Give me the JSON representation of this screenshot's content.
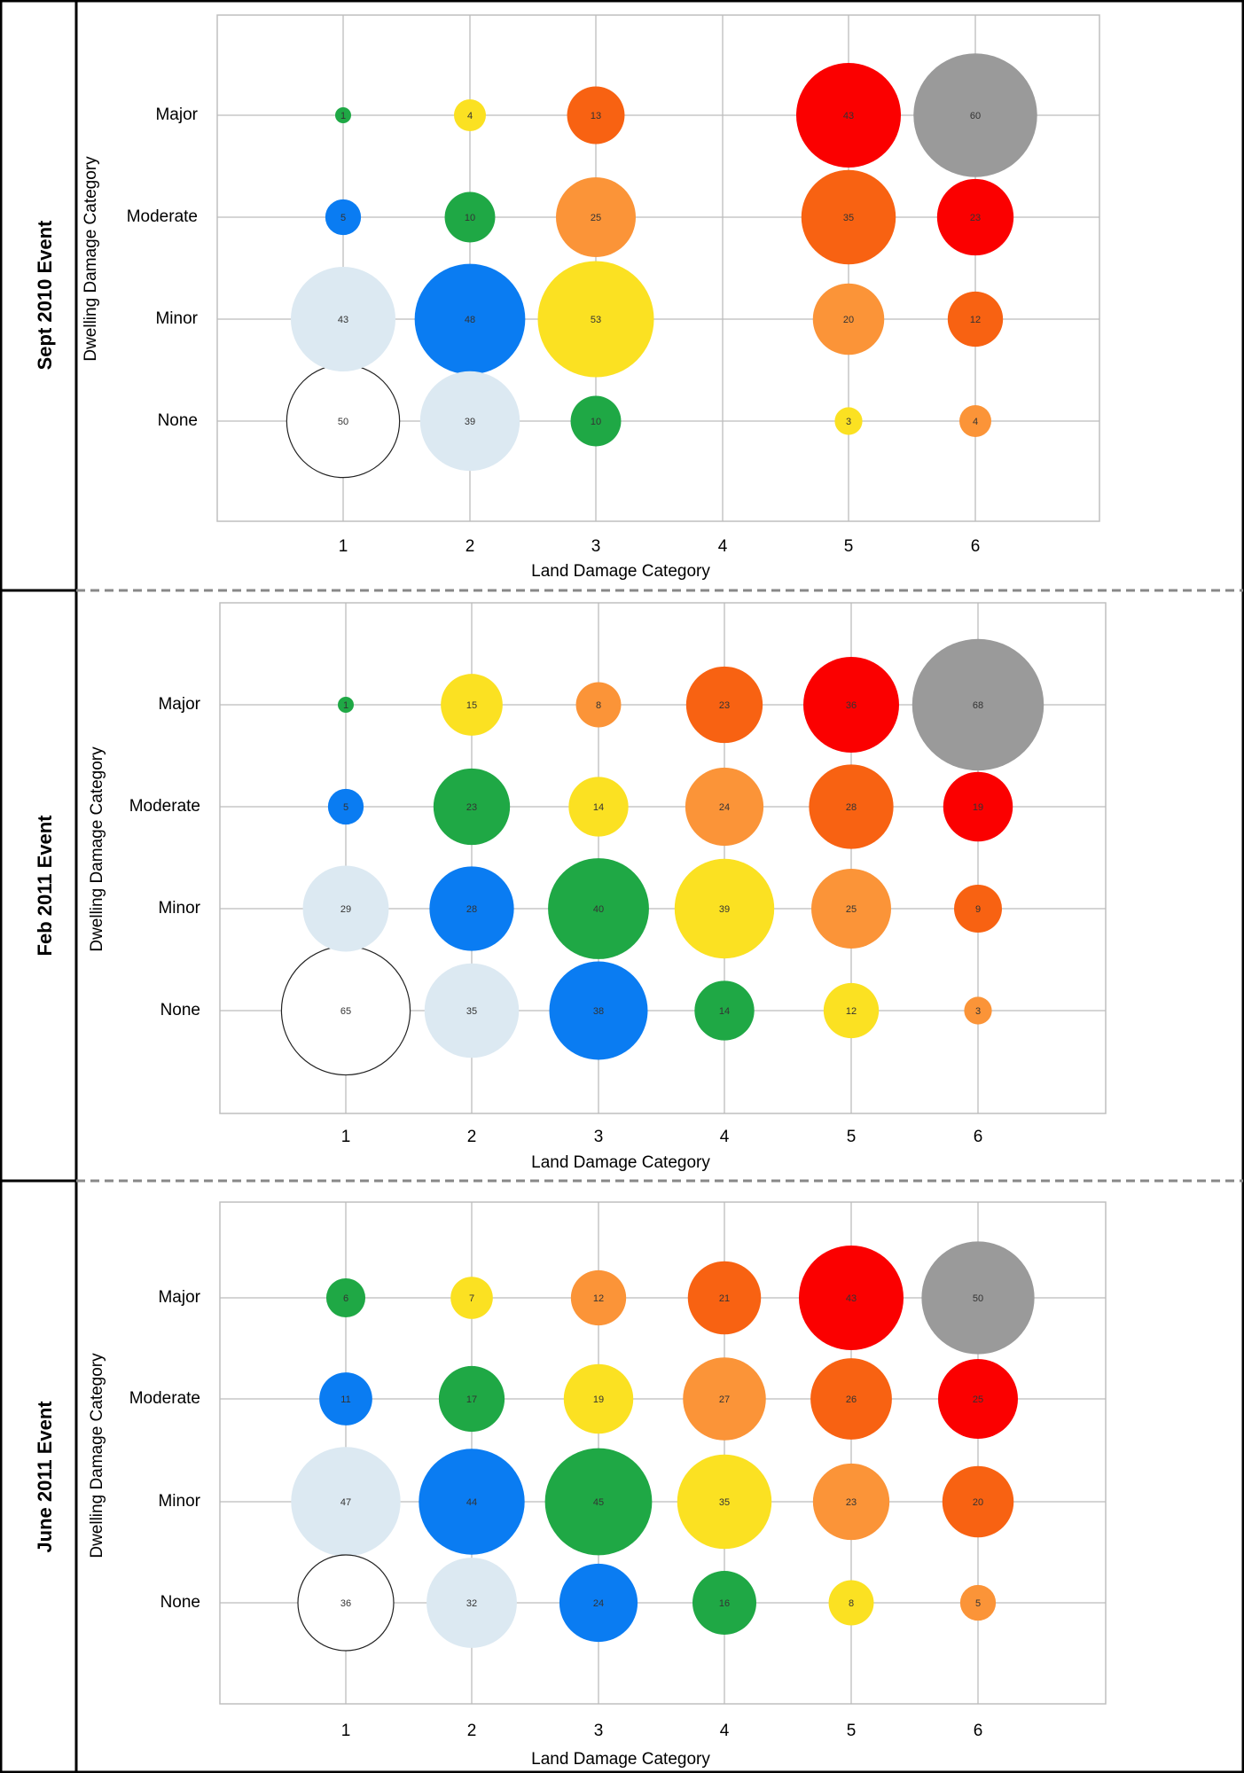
{
  "panels": [
    {
      "event_label": "Sept 2010 Event",
      "x_axis_label": "Land Damage Category",
      "y_axis_label": "Dwelling Damage Category"
    },
    {
      "event_label": "Feb 2011 Event",
      "x_axis_label": "Land Damage Category",
      "y_axis_label": "Dwelling Damage Category"
    },
    {
      "event_label": "June 2011 Event",
      "x_axis_label": "Land Damage Category",
      "y_axis_label": "Dwelling Damage Category"
    }
  ],
  "colors": {
    "white_outline": "#ffffff",
    "light_blue": "#dce9f2",
    "blue": "#0a7cf2",
    "green": "#1fa845",
    "yellow": "#fbe122",
    "light_orange": "#fb9438",
    "dark_orange": "#f86212",
    "red": "#fb0000",
    "gray": "#9a9a9a"
  },
  "chart_data": [
    {
      "type": "bubble",
      "title": "Sept 2010 Event",
      "xlabel": "Land Damage Category",
      "ylabel": "Dwelling Damage Category",
      "x_categories": [
        "1",
        "2",
        "3",
        "4",
        "5",
        "6"
      ],
      "y_categories": [
        "None",
        "Minor",
        "Moderate",
        "Major"
      ],
      "grid": true,
      "points": [
        {
          "x": 1,
          "y": "Major",
          "value": 1,
          "color": "green"
        },
        {
          "x": 2,
          "y": "Major",
          "value": 4,
          "color": "yellow"
        },
        {
          "x": 3,
          "y": "Major",
          "value": 13,
          "color": "dark_orange"
        },
        {
          "x": 5,
          "y": "Major",
          "value": 43,
          "color": "red"
        },
        {
          "x": 6,
          "y": "Major",
          "value": 60,
          "color": "gray"
        },
        {
          "x": 1,
          "y": "Moderate",
          "value": 5,
          "color": "blue"
        },
        {
          "x": 2,
          "y": "Moderate",
          "value": 10,
          "color": "green"
        },
        {
          "x": 3,
          "y": "Moderate",
          "value": 25,
          "color": "light_orange"
        },
        {
          "x": 5,
          "y": "Moderate",
          "value": 35,
          "color": "dark_orange"
        },
        {
          "x": 6,
          "y": "Moderate",
          "value": 23,
          "color": "red"
        },
        {
          "x": 1,
          "y": "Minor",
          "value": 43,
          "color": "light_blue"
        },
        {
          "x": 2,
          "y": "Minor",
          "value": 48,
          "color": "blue"
        },
        {
          "x": 3,
          "y": "Minor",
          "value": 53,
          "color": "yellow"
        },
        {
          "x": 5,
          "y": "Minor",
          "value": 20,
          "color": "light_orange"
        },
        {
          "x": 6,
          "y": "Minor",
          "value": 12,
          "color": "dark_orange"
        },
        {
          "x": 1,
          "y": "None",
          "value": 50,
          "color": "white_outline"
        },
        {
          "x": 2,
          "y": "None",
          "value": 39,
          "color": "light_blue"
        },
        {
          "x": 3,
          "y": "None",
          "value": 10,
          "color": "green"
        },
        {
          "x": 5,
          "y": "None",
          "value": 3,
          "color": "yellow"
        },
        {
          "x": 6,
          "y": "None",
          "value": 4,
          "color": "light_orange"
        }
      ]
    },
    {
      "type": "bubble",
      "title": "Feb 2011 Event",
      "xlabel": "Land Damage Category",
      "ylabel": "Dwelling Damage Category",
      "x_categories": [
        "1",
        "2",
        "3",
        "4",
        "5",
        "6"
      ],
      "y_categories": [
        "None",
        "Minor",
        "Moderate",
        "Major"
      ],
      "grid": true,
      "points": [
        {
          "x": 1,
          "y": "Major",
          "value": 1,
          "color": "green"
        },
        {
          "x": 2,
          "y": "Major",
          "value": 15,
          "color": "yellow"
        },
        {
          "x": 3,
          "y": "Major",
          "value": 8,
          "color": "light_orange"
        },
        {
          "x": 4,
          "y": "Major",
          "value": 23,
          "color": "dark_orange"
        },
        {
          "x": 5,
          "y": "Major",
          "value": 36,
          "color": "red"
        },
        {
          "x": 6,
          "y": "Major",
          "value": 68,
          "color": "gray"
        },
        {
          "x": 1,
          "y": "Moderate",
          "value": 5,
          "color": "blue"
        },
        {
          "x": 2,
          "y": "Moderate",
          "value": 23,
          "color": "green"
        },
        {
          "x": 3,
          "y": "Moderate",
          "value": 14,
          "color": "yellow"
        },
        {
          "x": 4,
          "y": "Moderate",
          "value": 24,
          "color": "light_orange"
        },
        {
          "x": 5,
          "y": "Moderate",
          "value": 28,
          "color": "dark_orange"
        },
        {
          "x": 6,
          "y": "Moderate",
          "value": 19,
          "color": "red"
        },
        {
          "x": 1,
          "y": "Minor",
          "value": 29,
          "color": "light_blue"
        },
        {
          "x": 2,
          "y": "Minor",
          "value": 28,
          "color": "blue"
        },
        {
          "x": 3,
          "y": "Minor",
          "value": 40,
          "color": "green"
        },
        {
          "x": 4,
          "y": "Minor",
          "value": 39,
          "color": "yellow"
        },
        {
          "x": 5,
          "y": "Minor",
          "value": 25,
          "color": "light_orange"
        },
        {
          "x": 6,
          "y": "Minor",
          "value": 9,
          "color": "dark_orange"
        },
        {
          "x": 1,
          "y": "None",
          "value": 65,
          "color": "white_outline"
        },
        {
          "x": 2,
          "y": "None",
          "value": 35,
          "color": "light_blue"
        },
        {
          "x": 3,
          "y": "None",
          "value": 38,
          "color": "blue"
        },
        {
          "x": 4,
          "y": "None",
          "value": 14,
          "color": "green"
        },
        {
          "x": 5,
          "y": "None",
          "value": 12,
          "color": "yellow"
        },
        {
          "x": 6,
          "y": "None",
          "value": 3,
          "color": "light_orange"
        }
      ]
    },
    {
      "type": "bubble",
      "title": "June 2011 Event",
      "xlabel": "Land Damage Category",
      "ylabel": "Dwelling Damage Category",
      "x_categories": [
        "1",
        "2",
        "3",
        "4",
        "5",
        "6"
      ],
      "y_categories": [
        "None",
        "Minor",
        "Moderate",
        "Major"
      ],
      "grid": true,
      "points": [
        {
          "x": 1,
          "y": "Major",
          "value": 6,
          "color": "green"
        },
        {
          "x": 2,
          "y": "Major",
          "value": 7,
          "color": "yellow"
        },
        {
          "x": 3,
          "y": "Major",
          "value": 12,
          "color": "light_orange"
        },
        {
          "x": 4,
          "y": "Major",
          "value": 21,
          "color": "dark_orange"
        },
        {
          "x": 5,
          "y": "Major",
          "value": 43,
          "color": "red"
        },
        {
          "x": 6,
          "y": "Major",
          "value": 50,
          "color": "gray"
        },
        {
          "x": 1,
          "y": "Moderate",
          "value": 11,
          "color": "blue"
        },
        {
          "x": 2,
          "y": "Moderate",
          "value": 17,
          "color": "green"
        },
        {
          "x": 3,
          "y": "Moderate",
          "value": 19,
          "color": "yellow"
        },
        {
          "x": 4,
          "y": "Moderate",
          "value": 27,
          "color": "light_orange"
        },
        {
          "x": 5,
          "y": "Moderate",
          "value": 26,
          "color": "dark_orange"
        },
        {
          "x": 6,
          "y": "Moderate",
          "value": 25,
          "color": "red"
        },
        {
          "x": 1,
          "y": "Minor",
          "value": 47,
          "color": "light_blue"
        },
        {
          "x": 2,
          "y": "Minor",
          "value": 44,
          "color": "blue"
        },
        {
          "x": 3,
          "y": "Minor",
          "value": 45,
          "color": "green"
        },
        {
          "x": 4,
          "y": "Minor",
          "value": 35,
          "color": "yellow"
        },
        {
          "x": 5,
          "y": "Minor",
          "value": 23,
          "color": "light_orange"
        },
        {
          "x": 6,
          "y": "Minor",
          "value": 20,
          "color": "dark_orange"
        },
        {
          "x": 1,
          "y": "None",
          "value": 36,
          "color": "white_outline"
        },
        {
          "x": 2,
          "y": "None",
          "value": 32,
          "color": "light_blue"
        },
        {
          "x": 3,
          "y": "None",
          "value": 24,
          "color": "blue"
        },
        {
          "x": 4,
          "y": "None",
          "value": 16,
          "color": "green"
        },
        {
          "x": 5,
          "y": "None",
          "value": 8,
          "color": "yellow"
        },
        {
          "x": 6,
          "y": "None",
          "value": 5,
          "color": "light_orange"
        }
      ]
    }
  ]
}
